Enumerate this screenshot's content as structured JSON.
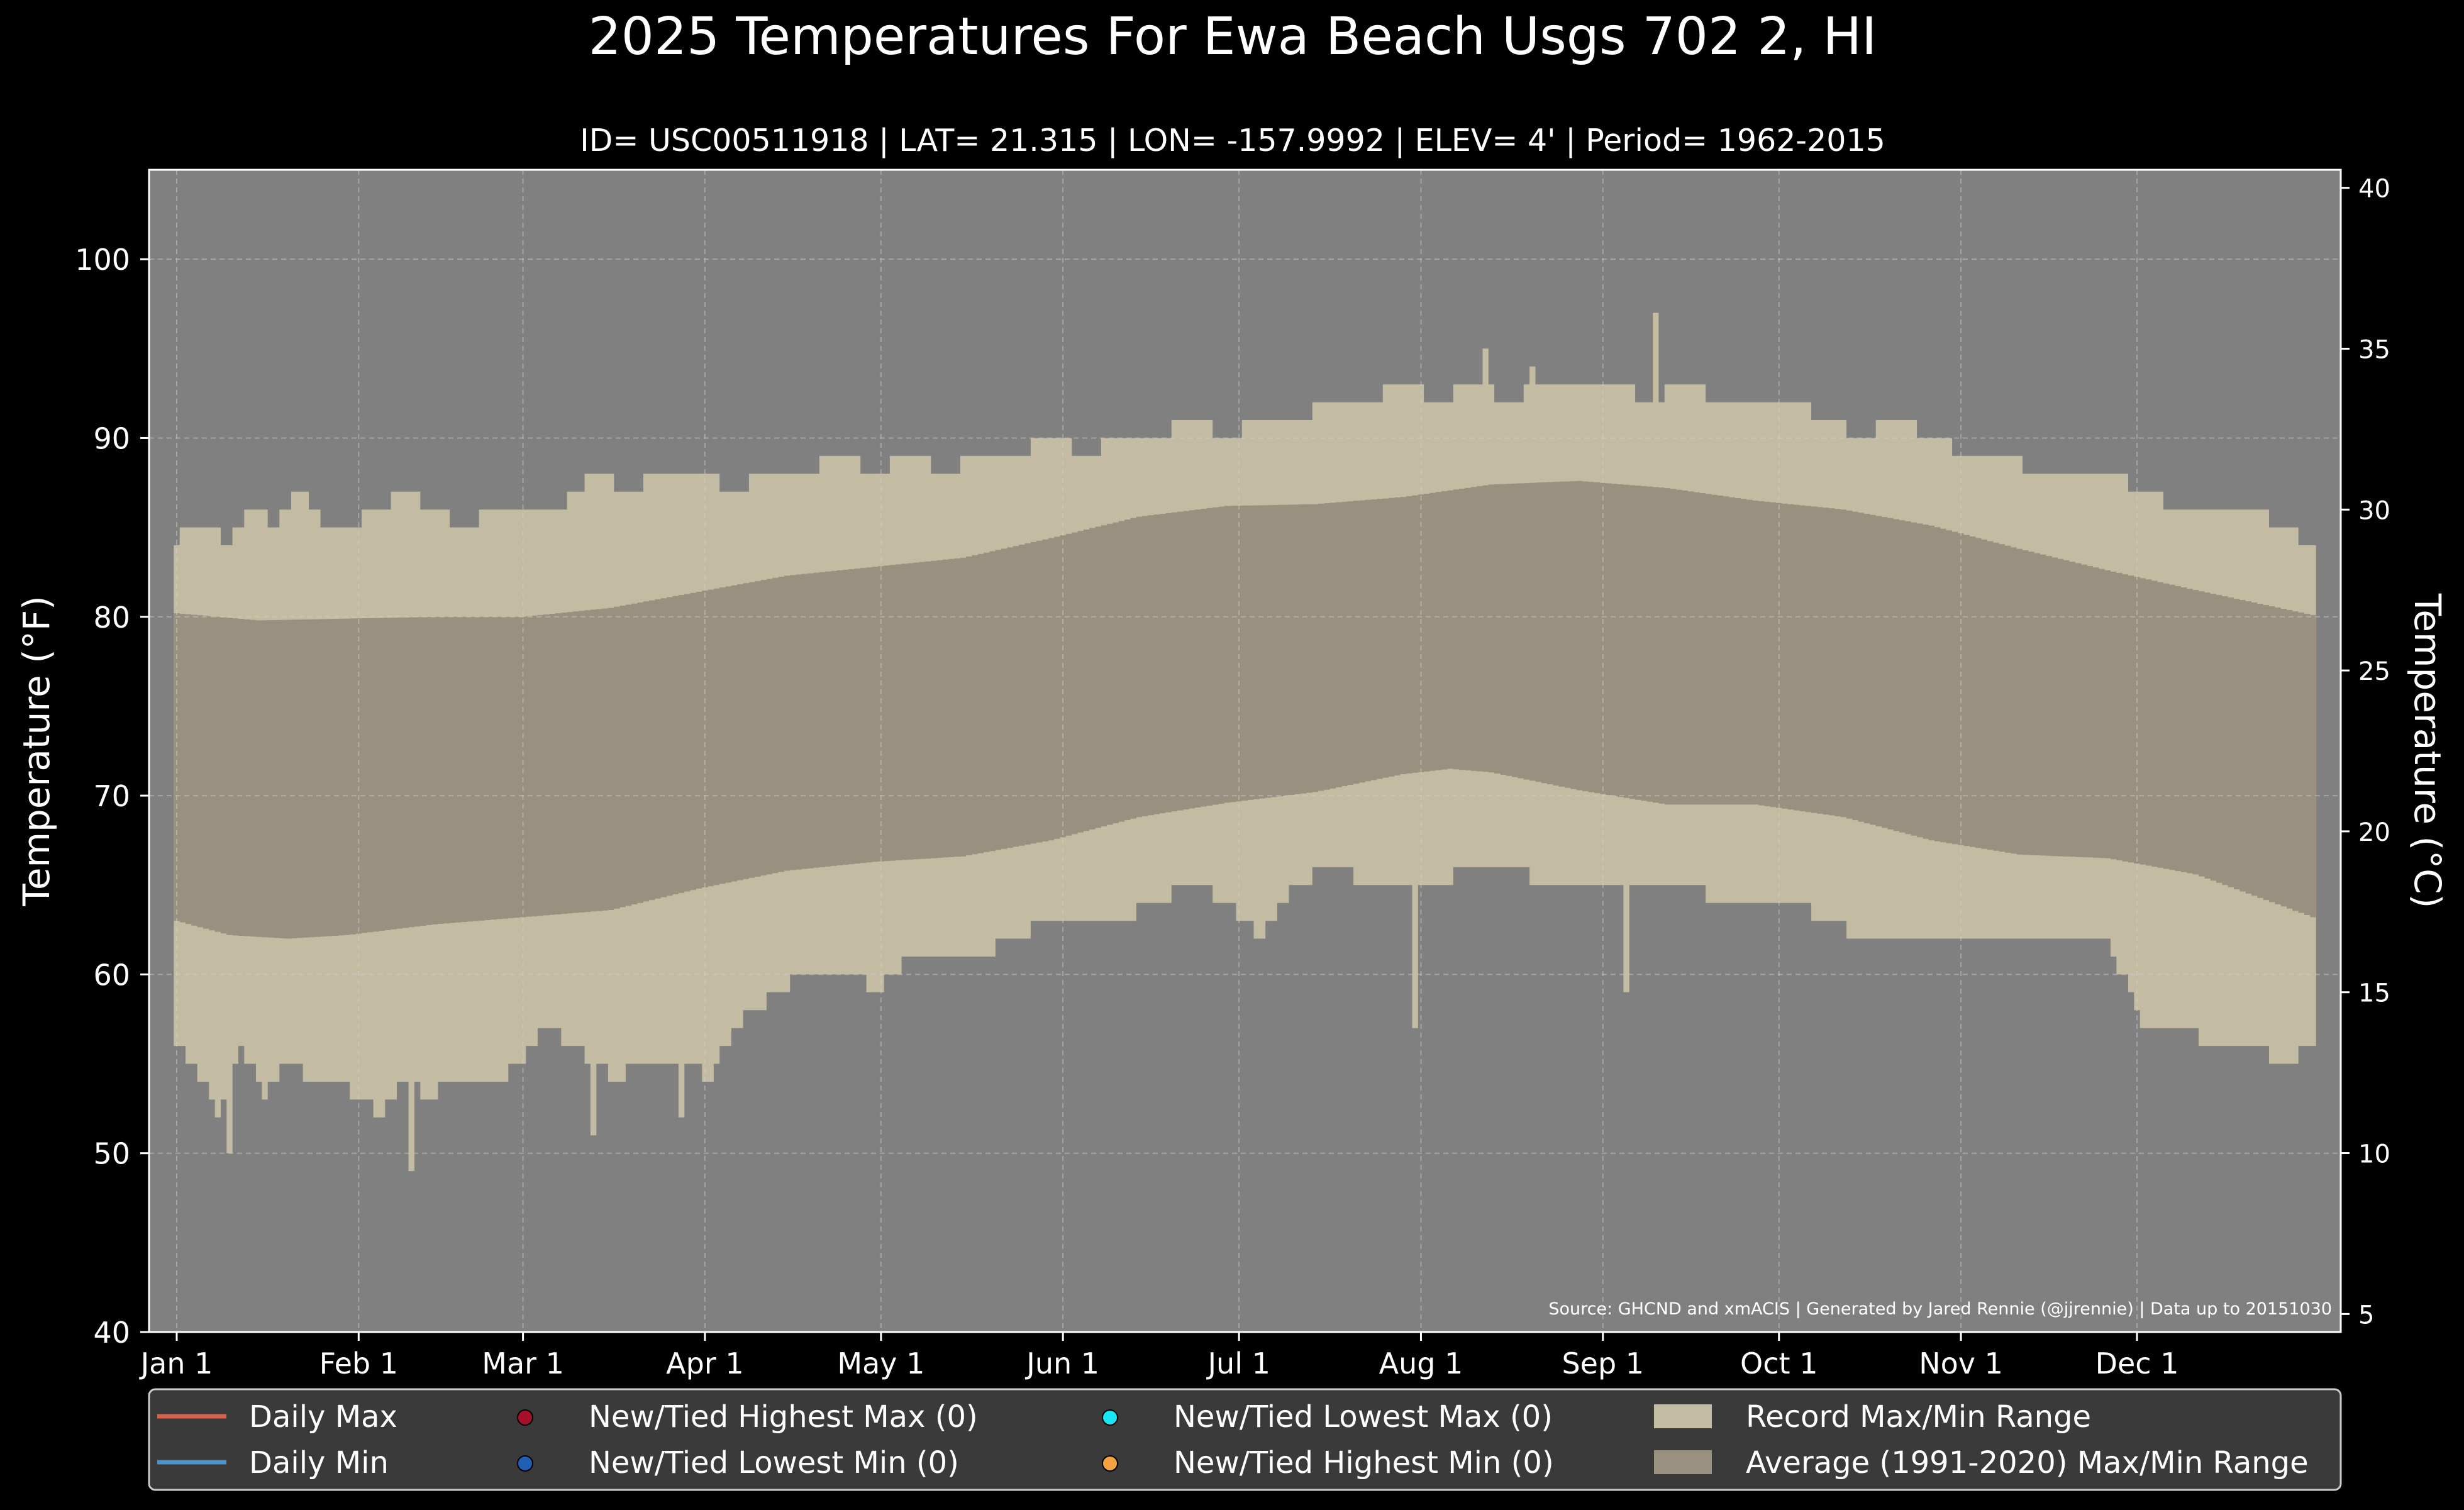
{
  "chart_data": {
    "type": "area",
    "title": "2025 Temperatures For Ewa Beach Usgs 702 2, HI",
    "subtitle": "ID= USC00511918 | LAT= 21.315 | LON= -157.9992 | ELEV= 4' | Period= 1962-2015",
    "source": "Source: GHCND and xmACIS | Generated by Jared Rennie (@jjrennie) | Data up to 20151030",
    "ylabel": "Temperature (°F)",
    "ylabel_right": "Temperature (°C)",
    "ylim": [
      40,
      105
    ],
    "xlim": [
      1,
      365
    ],
    "ylim_right": [
      4.44,
      40.56
    ],
    "y_ticks": [
      40,
      50,
      60,
      70,
      80,
      90,
      100
    ],
    "y_ticks_right": [
      5,
      10,
      15,
      20,
      25,
      30,
      35,
      40
    ],
    "x_ticks": [
      {
        "day": 1,
        "label": "Jan 1"
      },
      {
        "day": 32,
        "label": "Feb 1"
      },
      {
        "day": 60,
        "label": "Mar 1"
      },
      {
        "day": 91,
        "label": "Apr 1"
      },
      {
        "day": 121,
        "label": "May 1"
      },
      {
        "day": 152,
        "label": "Jun 1"
      },
      {
        "day": 182,
        "label": "Jul 1"
      },
      {
        "day": 213,
        "label": "Aug 1"
      },
      {
        "day": 244,
        "label": "Sep 1"
      },
      {
        "day": 274,
        "label": "Oct 1"
      },
      {
        "day": 305,
        "label": "Nov 1"
      },
      {
        "day": 335,
        "label": "Dec 1"
      }
    ],
    "grid": true,
    "legend_position": "bottom",
    "legend": [
      {
        "label": "Daily Max",
        "kind": "line",
        "color": "#d9604a"
      },
      {
        "label": "Daily Min",
        "kind": "line",
        "color": "#4f93c8"
      },
      {
        "label": "New/Tied Highest Max (0)",
        "kind": "dot",
        "color": "#a8102a"
      },
      {
        "label": "New/Tied Lowest Min (0)",
        "kind": "dot",
        "color": "#1f5fb8"
      },
      {
        "label": "New/Tied Lowest Max (0)",
        "kind": "dot",
        "color": "#19e6f0"
      },
      {
        "label": "New/Tied Highest Min (0)",
        "kind": "dot",
        "color": "#f5a342"
      },
      {
        "label": "Record Max/Min Range",
        "kind": "patch",
        "color": "#c4bba3"
      },
      {
        "label": "Average (1991-2020) Max/Min Range",
        "kind": "patch",
        "color": "#9a9080"
      }
    ],
    "colors": {
      "figure_bg": "#000000",
      "plot_bg": "#808080",
      "record_range": "#c4bba3",
      "average_range": "#9a9080",
      "text": "#ffffff",
      "legend_bg": "#3a3a3a"
    },
    "series": [
      {
        "name": "Record Max",
        "role": "record_max",
        "anchor_days": [
          1,
          3,
          6,
          10,
          14,
          18,
          22,
          26,
          30,
          35,
          40,
          45,
          50,
          55,
          60,
          66,
          72,
          78,
          84,
          90,
          96,
          102,
          108,
          114,
          120,
          126,
          132,
          138,
          144,
          150,
          156,
          162,
          168,
          174,
          180,
          186,
          192,
          198,
          204,
          210,
          216,
          222,
          228,
          234,
          240,
          246,
          252,
          258,
          264,
          270,
          276,
          282,
          288,
          294,
          300,
          306,
          312,
          318,
          324,
          330,
          336,
          342,
          348,
          354,
          360,
          365
        ],
        "values": [
          84,
          85,
          85,
          84,
          86,
          85,
          87,
          85,
          85,
          86,
          87,
          86,
          85,
          86,
          86,
          86,
          88,
          87,
          88,
          88,
          87,
          88,
          88,
          89,
          88,
          89,
          88,
          89,
          89,
          90,
          89,
          90,
          90,
          91,
          90,
          91,
          91,
          92,
          92,
          93,
          92,
          93,
          92,
          93,
          93,
          93,
          92,
          93,
          92,
          92,
          92,
          91,
          90,
          91,
          90,
          89,
          89,
          88,
          88,
          88,
          87,
          86,
          86,
          86,
          85,
          84
        ]
      },
      {
        "name": "Average Max",
        "role": "avg_max",
        "anchor_days": [
          1,
          15,
          30,
          45,
          60,
          75,
          90,
          105,
          120,
          135,
          150,
          165,
          180,
          195,
          210,
          225,
          240,
          255,
          270,
          285,
          300,
          315,
          330,
          345,
          365
        ],
        "values": [
          80.2,
          79.8,
          79.9,
          80.0,
          80.0,
          80.5,
          81.4,
          82.3,
          82.8,
          83.3,
          84.4,
          85.6,
          86.2,
          86.3,
          86.7,
          87.4,
          87.6,
          87.2,
          86.5,
          86.0,
          85.1,
          83.8,
          82.6,
          81.5,
          80.1
        ]
      },
      {
        "name": "Average Min",
        "role": "avg_min",
        "anchor_days": [
          1,
          10,
          20,
          30,
          45,
          60,
          75,
          90,
          105,
          120,
          135,
          150,
          165,
          180,
          195,
          210,
          218,
          225,
          240,
          255,
          270,
          285,
          300,
          315,
          330,
          345,
          365
        ],
        "values": [
          63.0,
          62.2,
          62.0,
          62.2,
          62.8,
          63.2,
          63.6,
          64.8,
          65.8,
          66.3,
          66.6,
          67.5,
          68.8,
          69.6,
          70.2,
          71.2,
          71.5,
          71.3,
          70.3,
          69.5,
          69.5,
          68.8,
          67.5,
          66.7,
          66.5,
          65.6,
          63.2
        ]
      },
      {
        "name": "Record Min",
        "role": "record_min",
        "anchor_days": [
          1,
          4,
          8,
          12,
          16,
          20,
          24,
          28,
          32,
          36,
          40,
          44,
          48,
          52,
          56,
          60,
          64,
          68,
          72,
          76,
          80,
          84,
          88,
          92,
          96,
          100,
          104,
          108,
          112,
          116,
          120,
          126,
          132,
          138,
          144,
          150,
          156,
          162,
          168,
          174,
          180,
          186,
          192,
          198,
          204,
          210,
          216,
          222,
          228,
          234,
          240,
          246,
          252,
          258,
          264,
          270,
          276,
          282,
          288,
          294,
          300,
          306,
          312,
          318,
          324,
          330,
          336,
          342,
          348,
          354,
          360,
          365
        ],
        "values": [
          56,
          55,
          52,
          56,
          53,
          55,
          54,
          54,
          53,
          52,
          54,
          53,
          54,
          54,
          54,
          55,
          57,
          56,
          55,
          54,
          55,
          55,
          55,
          54,
          57,
          58,
          59,
          60,
          60,
          60,
          59,
          61,
          61,
          61,
          62,
          63,
          63,
          63,
          64,
          65,
          64,
          62,
          65,
          66,
          65,
          65,
          65,
          66,
          66,
          65,
          65,
          65,
          65,
          65,
          64,
          64,
          64,
          63,
          62,
          62,
          62,
          62,
          62,
          62,
          62,
          62,
          57,
          57,
          56,
          56,
          55,
          56
        ]
      }
    ],
    "extremes": [
      {
        "day": 10,
        "value": 50,
        "role": "record_min"
      },
      {
        "day": 41,
        "value": 49,
        "role": "record_min"
      },
      {
        "day": 72,
        "value": 51,
        "role": "record_min"
      },
      {
        "day": 87,
        "value": 52,
        "role": "record_min"
      },
      {
        "day": 212,
        "value": 57,
        "role": "record_min"
      },
      {
        "day": 248,
        "value": 59,
        "role": "record_min"
      },
      {
        "day": 253,
        "value": 97,
        "role": "record_max"
      },
      {
        "day": 224,
        "value": 95,
        "role": "record_max"
      },
      {
        "day": 232,
        "value": 94,
        "role": "record_max"
      },
      {
        "day": 221,
        "value": 93,
        "role": "record_max"
      }
    ]
  }
}
